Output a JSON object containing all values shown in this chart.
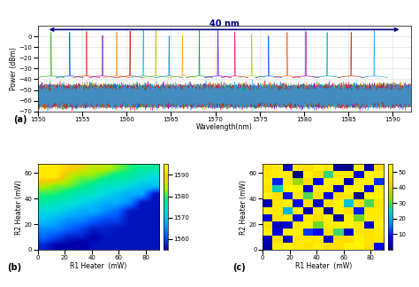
{
  "top_panel": {
    "xlim": [
      1550,
      1592
    ],
    "ylim": [
      -70,
      10
    ],
    "xlabel": "Wavelength(nm)",
    "ylabel": "Power (dBm)",
    "xticks": [
      1550,
      1555,
      1560,
      1565,
      1570,
      1575,
      1580,
      1585,
      1590
    ],
    "yticks": [
      -70,
      -60,
      -50,
      -40,
      -30,
      -20,
      -10,
      0
    ],
    "arrow_text": "40 nm",
    "label": "(a)",
    "noise_floor": -53,
    "noise_std": 3,
    "peak_positions": [
      1551.5,
      1553.6,
      1555.5,
      1557.3,
      1558.9,
      1560.4,
      1561.9,
      1563.3,
      1564.8,
      1566.3,
      1568.2,
      1570.3,
      1572.2,
      1574.1,
      1576.0,
      1578.1,
      1580.2,
      1582.6,
      1585.3,
      1587.9,
      1590.1
    ],
    "peak_colors": [
      "#22BB00",
      "#0044FF",
      "#DD2200",
      "#8800BB",
      "#FF8800",
      "#BB1100",
      "#00BBCC",
      "#AACC00",
      "#0088DD",
      "#FFAA00",
      "#009933",
      "#5500DD",
      "#FF0077",
      "#99CC00",
      "#0055FF",
      "#FF5500",
      "#AA00AA",
      "#00AAAA",
      "#BB3300",
      "#22AAFF"
    ],
    "noise_colors": [
      "#22BB00",
      "#0044FF",
      "#DD2200",
      "#8800BB",
      "#FF8800",
      "#BB1100",
      "#00BBCC",
      "#AACC00",
      "#0088DD",
      "#FFAA00",
      "#009933",
      "#5500DD",
      "#FF0077",
      "#99CC00",
      "#0055FF",
      "#FF5500",
      "#AA00AA",
      "#00AAAA",
      "#BB3300",
      "#22AAFF"
    ]
  },
  "bottom_left": {
    "xlim": [
      0,
      90
    ],
    "ylim": [
      0,
      67
    ],
    "xlabel": "R1 Heater  (mW)",
    "ylabel": "R2 Heater (mW)",
    "xticks": [
      0,
      20,
      40,
      60,
      80
    ],
    "yticks": [
      0,
      20,
      40,
      60
    ],
    "cbar_ticks": [
      1560,
      1570,
      1580,
      1590
    ],
    "label": "(b)",
    "vmin": 1555,
    "vmax": 1595
  },
  "bottom_right": {
    "xlim": [
      0,
      90
    ],
    "ylim": [
      0,
      67
    ],
    "xlabel": "R1 Heater  (mW)",
    "ylabel": "R2 Heater (mW)",
    "xticks": [
      0,
      20,
      40,
      60,
      80
    ],
    "yticks": [
      0,
      20,
      40,
      60
    ],
    "cbar_ticks": [
      10,
      20,
      30,
      40,
      50
    ],
    "label": "(c)",
    "vmin": 0,
    "vmax": 55
  },
  "background_color": "#ffffff"
}
